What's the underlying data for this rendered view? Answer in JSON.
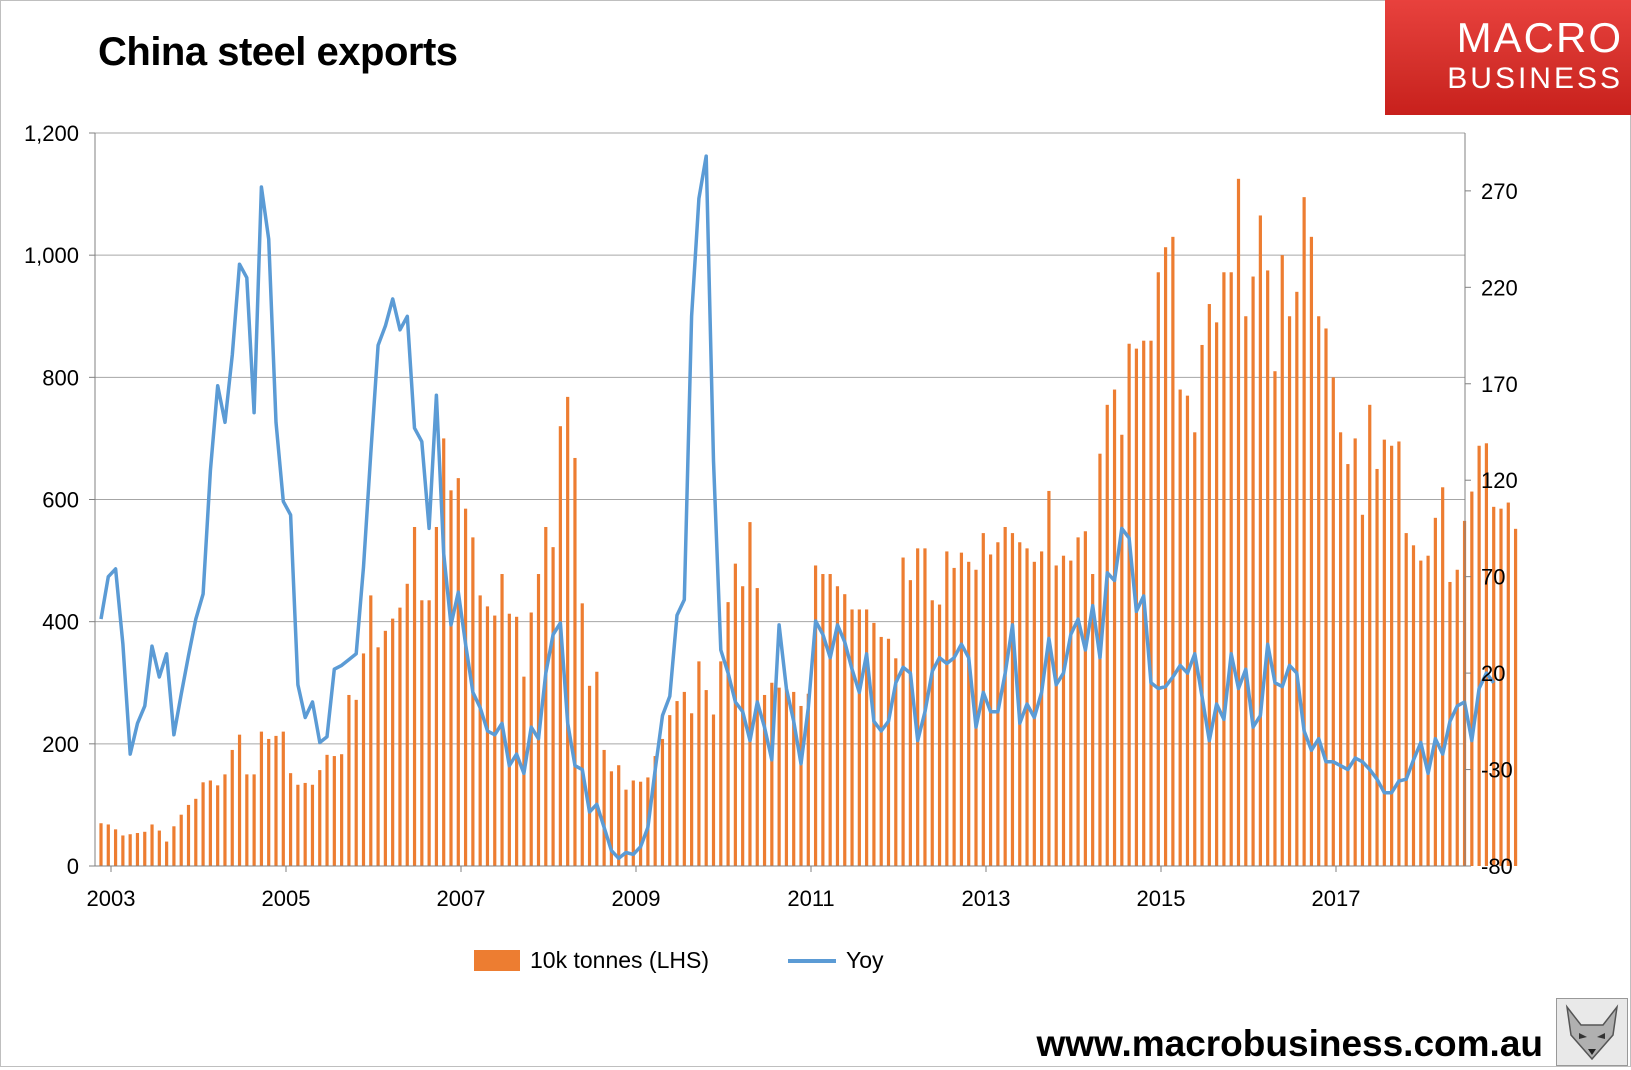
{
  "title": "China steel exports",
  "logo": {
    "line1": "MACRO",
    "line2": "BUSINESS"
  },
  "footer": {
    "url": "www.macrobusiness.com.au"
  },
  "colors": {
    "bars": "#ed7d31",
    "line": "#5b9bd5",
    "logo": "#d9342f"
  },
  "chart_data": {
    "type": "bar+line",
    "start": [
      2003,
      1
    ],
    "left_axis": {
      "ylim": [
        0,
        1200
      ],
      "ticks": [
        0,
        200,
        400,
        600,
        800,
        1000,
        1200
      ],
      "tick_labels": [
        "0",
        "200",
        "400",
        "600",
        "800",
        "1,000",
        "1,200"
      ]
    },
    "right_axis": {
      "ylim": [
        -80,
        300
      ],
      "ticks": [
        -80,
        -30,
        20,
        70,
        120,
        170,
        220,
        270
      ],
      "tick_labels": [
        "-80",
        "-30",
        "20",
        "70",
        "120",
        "170",
        "220",
        "270"
      ]
    },
    "x_ticks": [
      "2003",
      "2005",
      "2007",
      "2009",
      "2011",
      "2013",
      "2015",
      "2017"
    ],
    "gridlines": true,
    "series": [
      {
        "name": "10k tonnes (LHS)",
        "kind": "bar",
        "axis": "left",
        "values": [
          70,
          68,
          60,
          50,
          52,
          54,
          56,
          68,
          58,
          40,
          65,
          84,
          100,
          110,
          137,
          140,
          132,
          150,
          190,
          215,
          150,
          150,
          220,
          208,
          213,
          220,
          152,
          133,
          136,
          133,
          157,
          182,
          180,
          183,
          280,
          272,
          348,
          443,
          358,
          385,
          405,
          423,
          462,
          555,
          435,
          435,
          555,
          700,
          615,
          635,
          585,
          538,
          443,
          425,
          410,
          478,
          413,
          408,
          310,
          415,
          478,
          555,
          522,
          720,
          768,
          668,
          430,
          295,
          318,
          190,
          155,
          165,
          125,
          140,
          138,
          145,
          180,
          208,
          247,
          270,
          285,
          250,
          335,
          288,
          248,
          335,
          432,
          495,
          458,
          563,
          455,
          280,
          300,
          292,
          290,
          285,
          262,
          282,
          492,
          478,
          478,
          458,
          445,
          420,
          420,
          420,
          398,
          375,
          372,
          340,
          505,
          468,
          520,
          520,
          435,
          428,
          515,
          488,
          513,
          498,
          485,
          545,
          510,
          530,
          555,
          545,
          530,
          520,
          498,
          515,
          614,
          492,
          508,
          500,
          538,
          548,
          478,
          675,
          755,
          780,
          706,
          855,
          847,
          860,
          860,
          972,
          1013,
          1030,
          780,
          770,
          710,
          853,
          920,
          890,
          972,
          972,
          1125,
          900,
          965,
          1065,
          975,
          810,
          1000,
          900,
          940,
          1095,
          1030,
          900,
          880,
          800,
          710,
          658,
          700,
          575,
          755,
          650,
          698,
          688,
          695,
          545,
          525,
          500,
          508,
          570,
          620,
          465,
          485,
          565,
          613,
          688,
          692,
          588,
          585,
          595,
          552
        ]
      },
      {
        "name": "Yoy",
        "kind": "line",
        "axis": "right",
        "values": [
          48,
          70,
          74,
          35,
          -22,
          -6,
          3,
          34,
          18,
          30,
          -12,
          9,
          29,
          48,
          61,
          125,
          169,
          150,
          185,
          232,
          225,
          155,
          272,
          245,
          150,
          109,
          102,
          14,
          -3,
          5,
          -16,
          -13,
          22,
          24,
          27,
          30,
          75,
          134,
          190,
          200,
          214,
          198,
          205,
          147,
          140,
          95,
          164,
          82,
          45,
          62,
          35,
          10,
          2,
          -10,
          -12,
          -6,
          -28,
          -22,
          -32,
          -8,
          -14,
          20,
          40,
          46,
          -6,
          -28,
          -30,
          -52,
          -48,
          -60,
          -72,
          -76,
          -73,
          -74,
          -70,
          -60,
          -30,
          -2,
          8,
          50,
          58,
          205,
          266,
          288,
          130,
          32,
          20,
          5,
          0,
          -15,
          5,
          -8,
          -25,
          45,
          12,
          -5,
          -27,
          2,
          47,
          40,
          28,
          45,
          36,
          22,
          10,
          30,
          -5,
          -10,
          -5,
          15,
          23,
          20,
          -15,
          0,
          21,
          28,
          25,
          28,
          35,
          28,
          -8,
          10,
          0,
          0,
          20,
          45,
          -6,
          4,
          -3,
          10,
          38,
          14,
          20,
          40,
          48,
          32,
          55,
          28,
          72,
          68,
          95,
          90,
          52,
          60,
          15,
          12,
          13,
          18,
          24,
          20,
          30,
          8,
          -15,
          4,
          -4,
          30,
          12,
          22,
          -8,
          -2,
          35,
          15,
          13,
          24,
          20,
          -10,
          -20,
          -14,
          -26,
          -26,
          -28,
          -30,
          -24,
          -26,
          -30,
          -35,
          -42,
          -42,
          -36,
          -35,
          -25,
          -16,
          -32,
          -14,
          -22,
          -5,
          3,
          5,
          -15,
          12,
          20,
          15
        ]
      }
    ],
    "legend": {
      "placement": "bottom",
      "entries": [
        "10k tonnes (LHS)",
        "Yoy"
      ]
    }
  }
}
